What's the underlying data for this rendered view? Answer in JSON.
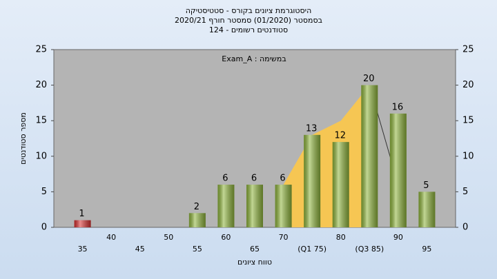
{
  "chart_data": {
    "type": "bar",
    "title": "היסטוגרמת ציונים בקורס - סטטיסטיקה",
    "subtitle": "בסמסטר  (01/2020)  סמסטר חורף 2020/21",
    "subtitle2": "סטודנטים רשומים - 124",
    "annotation": "Exam_A : במשימה",
    "x_label": "טווח ציונים",
    "y_label": "מספר סטודנטים",
    "categories": [
      "35",
      "40",
      "45",
      "50",
      "55",
      "60",
      "65",
      "70",
      "(Q1 75)",
      "80",
      "(Q3 85)",
      "90",
      "95"
    ],
    "values": [
      1,
      0,
      0,
      0,
      2,
      6,
      6,
      6,
      13,
      12,
      20,
      16,
      5
    ],
    "colors": [
      "#d93030",
      "#8fb53c",
      "#8fb53c",
      "#8fb53c",
      "#8fb53c",
      "#8fb53c",
      "#8fb53c",
      "#8fb53c",
      "#8fb53c",
      "#8fb53c",
      "#8fb53c",
      "#8fb53c",
      "#8fb53c"
    ],
    "area_values": [
      null,
      null,
      null,
      null,
      null,
      null,
      null,
      6,
      13,
      15,
      20,
      null,
      null
    ],
    "area_color": "#f6c653",
    "line_values": [
      null,
      null,
      null,
      null,
      null,
      null,
      null,
      null,
      null,
      null,
      20,
      6,
      null
    ],
    "line_color": "#333333",
    "ylim": [
      0,
      25
    ],
    "yticks": [
      0,
      5,
      10,
      15,
      20,
      25
    ],
    "y2lim": [
      0,
      25
    ],
    "y2ticks": [
      0,
      5,
      10,
      15,
      20,
      25
    ]
  }
}
